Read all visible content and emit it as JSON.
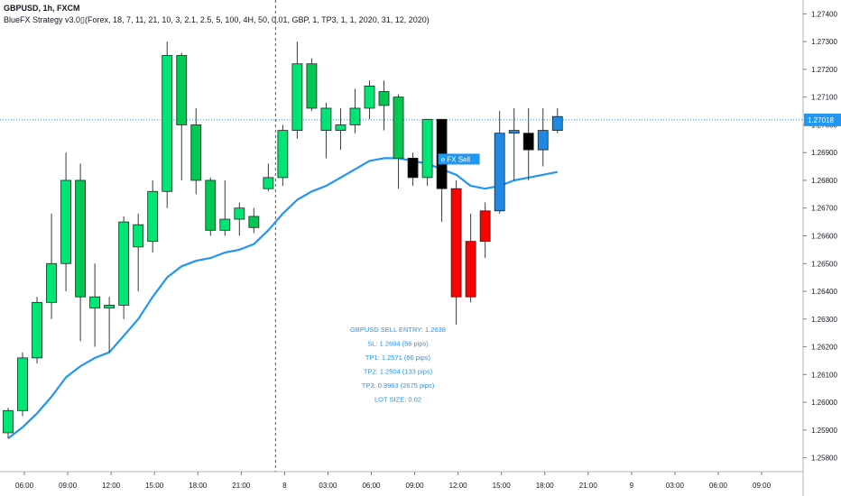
{
  "header": {
    "symbol": "GBPUSD, 1h, FXCM",
    "indicator": "BlueFX Strategy v3.0▯(Forex, 18, 7, 11, 21, 10, 3, 2.1, 2.5, 5, 100, 4H, 50, 0.01, GBP, 1, TP3, 1, 1, 2020, 31, 12, 2020)"
  },
  "colors": {
    "up": "#00e676",
    "down_first": "#00c853",
    "down": "#ff0000",
    "neutral": "#000000",
    "blue": "#1e88e5",
    "ma": "#2196f3",
    "price_line": "#2196f3"
  },
  "chart_data": {
    "type": "candlestick",
    "ylim": [
      1.2575,
      1.2745
    ],
    "y_ticks": [
      "1.25800",
      "1.25900",
      "1.26000",
      "1.26100",
      "1.26200",
      "1.26300",
      "1.26400",
      "1.26500",
      "1.26600",
      "1.26700",
      "1.26800",
      "1.26900",
      "1.27000",
      "1.27100",
      "1.27200",
      "1.27300",
      "1.27400"
    ],
    "x_ticks": [
      "06:00",
      "09:00",
      "12:00",
      "15:00",
      "18:00",
      "21:00",
      "8",
      "03:00",
      "06:00",
      "09:00",
      "12:00",
      "15:00",
      "18:00",
      "21:00",
      "9",
      "03:00",
      "06:00",
      "09:00"
    ],
    "x_tick_index": [
      1,
      4,
      7,
      10,
      13,
      16,
      19,
      22,
      25,
      28,
      31,
      34,
      37,
      40,
      43,
      46,
      49,
      52
    ],
    "current_price": "1.27018",
    "candles": [
      {
        "o": 1.2589,
        "h": 1.2598,
        "l": 1.2587,
        "c": 1.2597,
        "col": "up"
      },
      {
        "o": 1.2597,
        "h": 1.2618,
        "l": 1.2595,
        "c": 1.2616,
        "col": "up"
      },
      {
        "o": 1.2616,
        "h": 1.2638,
        "l": 1.2614,
        "c": 1.2636,
        "col": "up"
      },
      {
        "o": 1.2636,
        "h": 1.2668,
        "l": 1.263,
        "c": 1.265,
        "col": "up"
      },
      {
        "o": 1.265,
        "h": 1.269,
        "l": 1.264,
        "c": 1.268,
        "col": "up"
      },
      {
        "o": 1.268,
        "h": 1.2686,
        "l": 1.2622,
        "c": 1.2638,
        "col": "down_first"
      },
      {
        "o": 1.2638,
        "h": 1.265,
        "l": 1.262,
        "c": 1.2634,
        "col": "up"
      },
      {
        "o": 1.2634,
        "h": 1.2638,
        "l": 1.2618,
        "c": 1.2635,
        "col": "up"
      },
      {
        "o": 1.2635,
        "h": 1.2667,
        "l": 1.263,
        "c": 1.2665,
        "col": "up"
      },
      {
        "o": 1.2656,
        "h": 1.2668,
        "l": 1.264,
        "c": 1.2664,
        "col": "up"
      },
      {
        "o": 1.2658,
        "h": 1.268,
        "l": 1.2654,
        "c": 1.2676,
        "col": "up"
      },
      {
        "o": 1.2676,
        "h": 1.273,
        "l": 1.267,
        "c": 1.2725,
        "col": "up"
      },
      {
        "o": 1.2725,
        "h": 1.2726,
        "l": 1.268,
        "c": 1.27,
        "col": "down_first"
      },
      {
        "o": 1.27,
        "h": 1.2706,
        "l": 1.2675,
        "c": 1.268,
        "col": "down_first"
      },
      {
        "o": 1.268,
        "h": 1.2681,
        "l": 1.266,
        "c": 1.2662,
        "col": "down_first"
      },
      {
        "o": 1.2662,
        "h": 1.268,
        "l": 1.266,
        "c": 1.2666,
        "col": "up"
      },
      {
        "o": 1.2666,
        "h": 1.2672,
        "l": 1.266,
        "c": 1.267,
        "col": "up"
      },
      {
        "o": 1.2667,
        "h": 1.267,
        "l": 1.2661,
        "c": 1.2663,
        "col": "down_first"
      },
      {
        "o": 1.2677,
        "h": 1.2686,
        "l": 1.2676,
        "c": 1.2681,
        "col": "up"
      },
      {
        "o": 1.2681,
        "h": 1.27,
        "l": 1.2678,
        "c": 1.2698,
        "col": "up"
      },
      {
        "o": 1.2698,
        "h": 1.273,
        "l": 1.2695,
        "c": 1.2722,
        "col": "up"
      },
      {
        "o": 1.2722,
        "h": 1.2724,
        "l": 1.2705,
        "c": 1.2706,
        "col": "down_first"
      },
      {
        "o": 1.2698,
        "h": 1.2708,
        "l": 1.2688,
        "c": 1.2706,
        "col": "up"
      },
      {
        "o": 1.2698,
        "h": 1.2706,
        "l": 1.2691,
        "c": 1.27,
        "col": "up"
      },
      {
        "o": 1.27,
        "h": 1.2713,
        "l": 1.2697,
        "c": 1.2706,
        "col": "up"
      },
      {
        "o": 1.2706,
        "h": 1.2716,
        "l": 1.2702,
        "c": 1.2714,
        "col": "up"
      },
      {
        "o": 1.2712,
        "h": 1.2716,
        "l": 1.2698,
        "c": 1.2707,
        "col": "down_first"
      },
      {
        "o": 1.271,
        "h": 1.2711,
        "l": 1.2677,
        "c": 1.2688,
        "col": "down_first"
      },
      {
        "o": 1.2688,
        "h": 1.269,
        "l": 1.2678,
        "c": 1.2681,
        "col": "neutral"
      },
      {
        "o": 1.2681,
        "h": 1.2702,
        "l": 1.2678,
        "c": 1.2702,
        "col": "up"
      },
      {
        "o": 1.2702,
        "h": 1.2702,
        "l": 1.2665,
        "c": 1.2677,
        "col": "neutral"
      },
      {
        "o": 1.2677,
        "h": 1.268,
        "l": 1.2628,
        "c": 1.2638,
        "col": "down"
      },
      {
        "o": 1.2638,
        "h": 1.2668,
        "l": 1.2636,
        "c": 1.2658,
        "col": "down"
      },
      {
        "o": 1.2658,
        "h": 1.2672,
        "l": 1.2652,
        "c": 1.2669,
        "col": "down"
      },
      {
        "o": 1.2669,
        "h": 1.2705,
        "l": 1.2668,
        "c": 1.2697,
        "col": "blue"
      },
      {
        "o": 1.2698,
        "h": 1.2706,
        "l": 1.268,
        "c": 1.2697,
        "col": "blue"
      },
      {
        "o": 1.2697,
        "h": 1.2706,
        "l": 1.268,
        "c": 1.2691,
        "col": "neutral"
      },
      {
        "o": 1.2691,
        "h": 1.2706,
        "l": 1.2685,
        "c": 1.2698,
        "col": "blue"
      },
      {
        "o": 1.2698,
        "h": 1.2706,
        "l": 1.2697,
        "c": 1.2703,
        "col": "blue"
      }
    ],
    "ma_line": [
      1.2587,
      1.2591,
      1.2596,
      1.2602,
      1.2609,
      1.2613,
      1.2616,
      1.2618,
      1.2624,
      1.263,
      1.2638,
      1.2645,
      1.2649,
      1.2651,
      1.2652,
      1.2654,
      1.2655,
      1.2657,
      1.2662,
      1.2668,
      1.2673,
      1.2676,
      1.2678,
      1.2681,
      1.2684,
      1.2687,
      1.2688,
      1.2688,
      1.2687,
      1.2686,
      1.2684,
      1.2682,
      1.2678,
      1.2677,
      1.2678,
      1.268,
      1.2681,
      1.2682,
      1.2683
    ],
    "signal_label": {
      "text": "e FX Sell",
      "index": 30,
      "y": 1.2687
    },
    "trade_info": [
      "GBPUSD SELL ENTRY: 1.2638",
      "SL: 1.2694 (56 pips)",
      "TP1: 1.2571 (66 pips)",
      "TP2: 1.2504 (133 pips)",
      "TP3: 0.9963 (2675 pips)",
      "LOT SIZE: 0.02"
    ],
    "session_divider_index": 18.5
  }
}
